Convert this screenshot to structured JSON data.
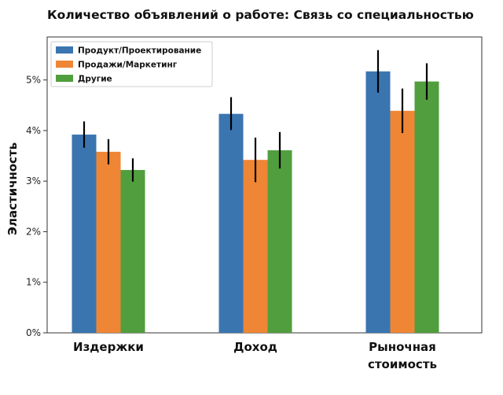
{
  "chart_data": {
    "type": "bar",
    "title": "Количество объявлений о работе: Связь со специальностью",
    "xlabel": "",
    "ylabel": "Эластичность",
    "categories": [
      [
        "Издержки"
      ],
      [
        "Доход"
      ],
      [
        "Рыночная",
        "стоимость"
      ]
    ],
    "yticks": [
      "0%",
      "1%",
      "2%",
      "3%",
      "4%",
      "5%"
    ],
    "ylim": [
      0,
      5.85
    ],
    "ytick_values": [
      0,
      1,
      2,
      3,
      4,
      5
    ],
    "legend_position": "top-left",
    "grid": false,
    "series": [
      {
        "name": "Продукт/Проектирование",
        "color": "#3a75b0",
        "values": [
          3.92,
          4.33,
          5.17
        ],
        "err_low": [
          3.66,
          4.01,
          4.75
        ],
        "err_high": [
          4.18,
          4.66,
          5.59
        ]
      },
      {
        "name": "Продажи/Маркетинг",
        "color": "#ee8636",
        "values": [
          3.58,
          3.42,
          4.39
        ],
        "err_low": [
          3.33,
          2.98,
          3.95
        ],
        "err_high": [
          3.83,
          3.86,
          4.83
        ]
      },
      {
        "name": "Другие",
        "color": "#519e3e",
        "values": [
          3.22,
          3.61,
          4.97
        ],
        "err_low": [
          2.99,
          3.25,
          4.61
        ],
        "err_high": [
          3.45,
          3.97,
          5.33
        ]
      }
    ]
  }
}
